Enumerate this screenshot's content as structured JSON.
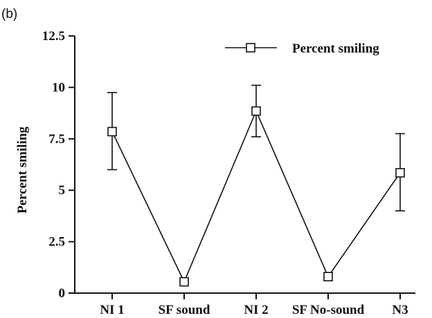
{
  "panel_label": "(b)",
  "chart_data": {
    "type": "line",
    "title": "",
    "xlabel": "",
    "ylabel": "Percent smiling",
    "categories": [
      "NI 1",
      "SF sound",
      "NI 2",
      "SF No-sound",
      "N3"
    ],
    "y_tick_labels": [
      "0",
      "2.5",
      "5",
      "7.5",
      "10",
      "12.5"
    ],
    "y_ticks": [
      0,
      2.5,
      5,
      7.5,
      10,
      12.5
    ],
    "ylim": [
      0,
      12.5
    ],
    "grid": false,
    "legend_position": "top-right",
    "series": [
      {
        "name": "Percent smiling",
        "marker": "open-square",
        "color": "#111111",
        "values": [
          7.85,
          0.55,
          8.85,
          0.8,
          5.85
        ],
        "error_upper": [
          9.75,
          null,
          10.1,
          null,
          7.75
        ],
        "error_lower": [
          6.0,
          null,
          7.6,
          null,
          4.0
        ]
      }
    ]
  }
}
